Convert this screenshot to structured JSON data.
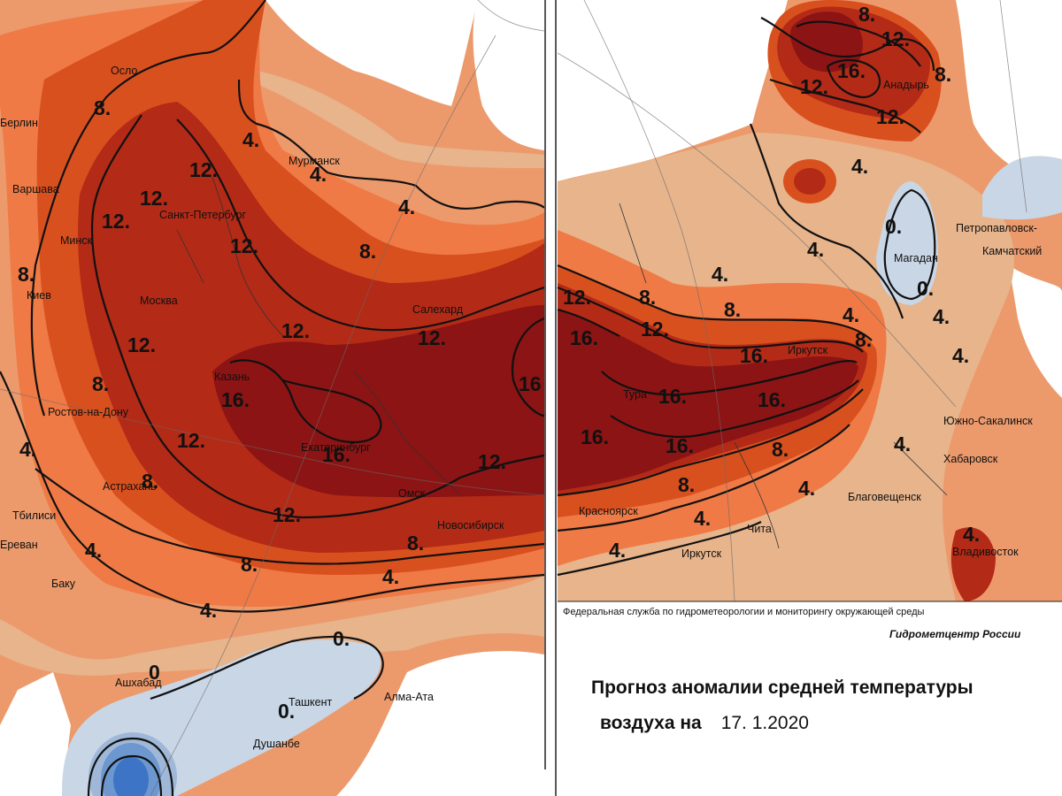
{
  "colors": {
    "anomaly_16": "#8c1414",
    "anomaly_12": "#b32a17",
    "anomaly_8": "#d9501f",
    "anomaly_6": "#ef7a45",
    "anomaly_4": "#ec9a6c",
    "anomaly_2": "#e7b48c",
    "anomaly_0": "#dcc7a6",
    "negative": "#c9d6e6",
    "negative_deep": "#3d74c5",
    "isoline": "#111111"
  },
  "cities": {
    "oslo": "Осло",
    "berlin": "Берлин",
    "warsaw": "Варшава",
    "minsk": "Минск",
    "kiev": "Киев",
    "spb": "Санкт-Петербург",
    "moscow": "Москва",
    "murmansk": "Мурманск",
    "salekhard": "Салехард",
    "kazan": "Казань",
    "rostov": "Ростов-на-Дону",
    "ekaterinburg": "Екатеринбург",
    "astrakhan": "Астрахань",
    "tbilisi": "Тбилиси",
    "erevan": "Ереван",
    "baku": "Баку",
    "omsk": "Омск",
    "novosibirsk": "Новосибирск",
    "ashgabat": "Ашхабад",
    "tashkent": "Ташкент",
    "almaty": "Алма-Ата",
    "dushanbe": "Душанбе",
    "anadyr": "Анадырь",
    "magadan": "Магадан",
    "petropavlovsk_1": "Петропавловск-",
    "petropavlovsk_2": "Камчатский",
    "irkutsk_n": "Иркутск",
    "tura": "Тура",
    "yuzhno": "Южно-Сакалинск",
    "khabarovsk": "Хабаровск",
    "blagoveshchensk": "Благовещенск",
    "krasnoyarsk": "Красноярск",
    "chita": "Чита",
    "irkutsk": "Иркутск",
    "vladivostok": "Владивосток"
  },
  "isoline_labels": {
    "l_4": "4.",
    "l_8": "8.",
    "l_12": "12.",
    "l_16": "16.",
    "l_16b": "16",
    "l_0": "0.",
    "l_0b": "0"
  },
  "footer": {
    "agency": "Федеральная служба по гидрометеорологии и мониторингу окружающей среды",
    "center": "Гидрометцентр России",
    "title_line1": "Прогноз аномалии средней температуры",
    "title_line2": "воздуха на",
    "date": "17. 1.2020"
  }
}
